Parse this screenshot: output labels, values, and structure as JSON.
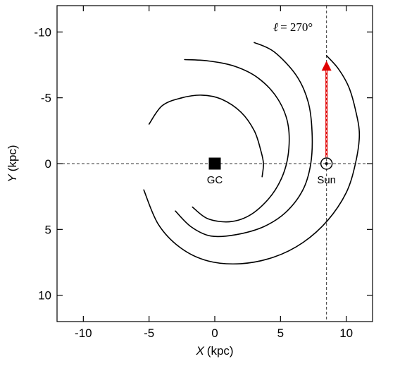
{
  "chart_data": {
    "type": "line",
    "xlabel_var": "X",
    "xlabel_unit": "(kpc)",
    "ylabel_var": "Y",
    "ylabel_unit": "(kpc)",
    "xlim": [
      -12,
      12
    ],
    "ylim": [
      -12,
      12
    ],
    "y_inverted": true,
    "x_ticks": [
      -10,
      -5,
      0,
      5,
      10
    ],
    "y_ticks": [
      -10,
      -5,
      0,
      5,
      10
    ],
    "x_tick_labels": [
      "-10",
      "-5",
      "0",
      "5",
      "10"
    ],
    "y_tick_labels": [
      "-10",
      "-5",
      "0",
      "5",
      "10"
    ],
    "grid": false,
    "reference_lines": [
      {
        "orientation": "horizontal",
        "value": 0,
        "style": "dashed"
      },
      {
        "orientation": "vertical",
        "value": 8.5,
        "style": "dashed"
      }
    ],
    "spiral_arms": [
      {
        "points": [
          [
            -5.0,
            -3.0
          ],
          [
            -4.0,
            -4.4
          ],
          [
            -2.5,
            -5.0
          ],
          [
            -1.0,
            -5.2
          ],
          [
            0.5,
            -4.9
          ],
          [
            2.0,
            -3.9
          ],
          [
            3.0,
            -2.5
          ],
          [
            3.5,
            -1.0
          ],
          [
            3.7,
            0.0
          ],
          [
            3.6,
            1.0
          ]
        ]
      },
      {
        "points": [
          [
            -2.3,
            -7.9
          ],
          [
            -0.5,
            -7.8
          ],
          [
            1.5,
            -7.4
          ],
          [
            3.3,
            -6.5
          ],
          [
            4.8,
            -4.9
          ],
          [
            5.6,
            -2.8
          ],
          [
            5.5,
            -0.2
          ],
          [
            4.6,
            2.0
          ],
          [
            3.0,
            3.7
          ],
          [
            1.3,
            4.4
          ],
          [
            -0.5,
            4.2
          ],
          [
            -1.7,
            3.3
          ]
        ]
      },
      {
        "points": [
          [
            3.0,
            -9.2
          ],
          [
            4.5,
            -8.5
          ],
          [
            6.2,
            -6.7
          ],
          [
            7.1,
            -4.7
          ],
          [
            7.4,
            -2.4
          ],
          [
            7.3,
            0.0
          ],
          [
            6.7,
            2.0
          ],
          [
            5.4,
            3.7
          ],
          [
            3.7,
            4.8
          ],
          [
            1.6,
            5.4
          ],
          [
            -0.3,
            5.5
          ],
          [
            -1.8,
            4.8
          ],
          [
            -3.0,
            3.6
          ]
        ]
      },
      {
        "points": [
          [
            8.5,
            -8.2
          ],
          [
            9.4,
            -7.2
          ],
          [
            10.2,
            -5.8
          ],
          [
            10.7,
            -4.1
          ],
          [
            11.0,
            -2.2
          ],
          [
            10.7,
            0.0
          ],
          [
            10.0,
            2.2
          ],
          [
            8.6,
            4.3
          ],
          [
            6.7,
            6.0
          ],
          [
            4.5,
            7.1
          ],
          [
            2.0,
            7.6
          ],
          [
            -0.5,
            7.4
          ],
          [
            -2.6,
            6.4
          ],
          [
            -4.3,
            4.6
          ],
          [
            -5.4,
            2.0
          ]
        ]
      }
    ],
    "markers": [
      {
        "label": "GC",
        "x": 0,
        "y": 0,
        "shape": "filled-square"
      },
      {
        "label": "Sun",
        "x": 8.5,
        "y": 0,
        "shape": "circle-dot"
      }
    ],
    "arrow": {
      "x": 8.5,
      "from_y": 0,
      "to_y": -7.7,
      "color": "#e00000"
    },
    "los_symbol": "ℓ",
    "los_value": "= 270°"
  }
}
